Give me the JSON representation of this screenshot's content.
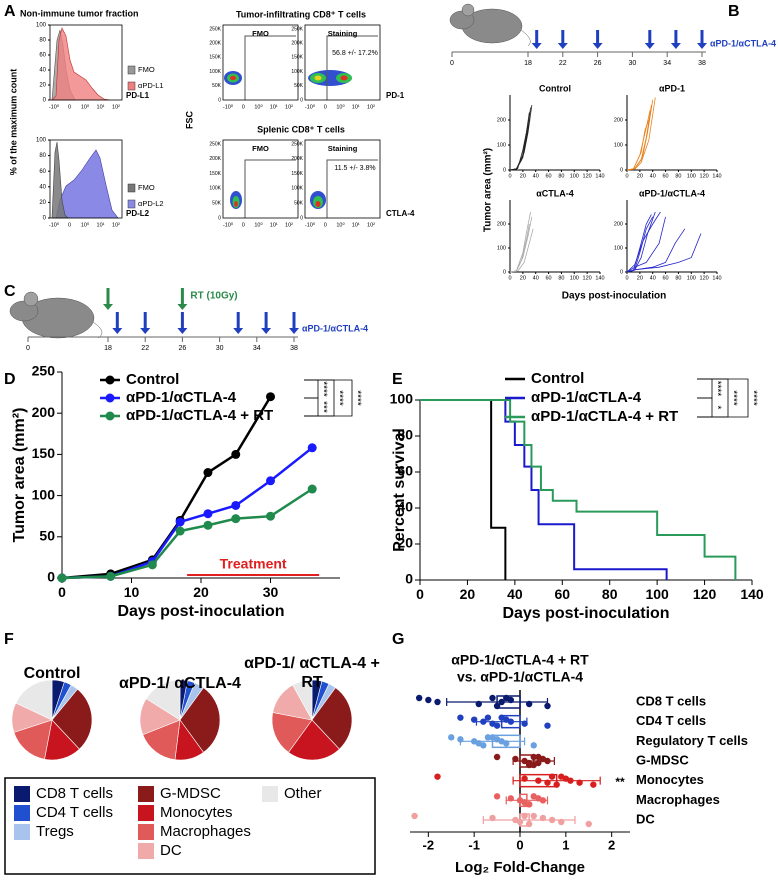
{
  "panel_labels": [
    "A",
    "B",
    "C",
    "D",
    "E",
    "F",
    "G"
  ],
  "histograms": {
    "title": "Non-immune tumor fraction",
    "ylabel": "% of the maximum count",
    "ylim": [
      0,
      100
    ],
    "yticks": [
      0,
      20,
      40,
      60,
      80,
      100
    ],
    "xticks": [
      "-10⁰",
      "0",
      "10⁰",
      "10¹",
      "10²"
    ],
    "panels": [
      {
        "xlabel": "PD-L1",
        "legend": [
          "FMO",
          "αPD-L1"
        ]
      },
      {
        "xlabel": "PD-L2",
        "legend": [
          "FMO",
          "αPD-L2"
        ]
      }
    ]
  },
  "dotplots": {
    "titles": [
      "Tumor-infiltrating CD8⁺ T cells",
      "Splenic CD8⁺ T cells"
    ],
    "ylabel": "FSC",
    "yticks": [
      "0",
      "50K",
      "100K",
      "150K",
      "200K",
      "250K"
    ],
    "xticks": [
      "-10⁰",
      "0",
      "10⁰",
      "10¹",
      "10²"
    ],
    "gates": [
      "FMO",
      "Staining"
    ],
    "stats": [
      "56.8 +/- 17.2%",
      "11.5 +/- 3.8%"
    ],
    "xlabels": [
      "PD-1",
      "CTLA-4"
    ]
  },
  "schedules": [
    {
      "ticks": [
        0,
        18,
        22,
        26,
        30,
        34,
        38
      ],
      "doses": [
        19,
        22,
        26,
        32,
        35,
        38
      ],
      "treatment": "αPD-1/αCTLA-4"
    },
    {
      "ticks": [
        0,
        18,
        22,
        26,
        30,
        34,
        38
      ],
      "doses": [
        19,
        22,
        26,
        32,
        35,
        38
      ],
      "rt_days": [
        18,
        26
      ],
      "rt_label": "RT (10Gy)",
      "treatment": "αPD-1/αCTLA-4"
    }
  ],
  "chart_data": [
    {
      "type": "line",
      "title": "Control",
      "ylabel": "Tumor area (mm²)",
      "xlabel": "Days post-inoculation",
      "color": "#222222",
      "xlim": [
        0,
        140
      ],
      "xticks": [
        0,
        20,
        40,
        60,
        80,
        100,
        120,
        140
      ],
      "ylim": [
        0,
        300
      ],
      "yticks": [
        0,
        100,
        200
      ],
      "series": [
        {
          "x": [
            0,
            10,
            20,
            25,
            30
          ],
          "values": [
            0,
            5,
            60,
            140,
            230
          ]
        },
        {
          "x": [
            0,
            10,
            20,
            26,
            32
          ],
          "values": [
            0,
            3,
            50,
            130,
            250
          ]
        },
        {
          "x": [
            0,
            10,
            22,
            28,
            34
          ],
          "values": [
            0,
            4,
            70,
            150,
            260
          ]
        },
        {
          "x": [
            0,
            12,
            20,
            27,
            31
          ],
          "values": [
            0,
            6,
            80,
            170,
            200
          ]
        },
        {
          "x": [
            0,
            10,
            18,
            24,
            29
          ],
          "values": [
            0,
            5,
            40,
            110,
            180
          ]
        }
      ]
    },
    {
      "type": "line",
      "title": "αPD-1",
      "color": "#e8821e",
      "xlim": [
        0,
        140
      ],
      "xticks": [
        0,
        20,
        40,
        60,
        80,
        100,
        120,
        140
      ],
      "ylim": [
        0,
        300
      ],
      "yticks": [
        0,
        100,
        200
      ],
      "series": [
        {
          "x": [
            0,
            12,
            22,
            30,
            38
          ],
          "values": [
            0,
            5,
            40,
            130,
            260
          ]
        },
        {
          "x": [
            0,
            12,
            24,
            32,
            40
          ],
          "values": [
            0,
            6,
            50,
            150,
            280
          ]
        },
        {
          "x": [
            0,
            10,
            20,
            30,
            36
          ],
          "values": [
            0,
            4,
            60,
            170,
            240
          ]
        },
        {
          "x": [
            0,
            12,
            22,
            34,
            44
          ],
          "values": [
            0,
            3,
            30,
            120,
            290
          ]
        },
        {
          "x": [
            0,
            10,
            22,
            28,
            34
          ],
          "values": [
            0,
            5,
            70,
            160,
            200
          ]
        }
      ]
    },
    {
      "type": "line",
      "title": "αCTLA-4",
      "color": "#aaaaaa",
      "xlim": [
        0,
        140
      ],
      "xticks": [
        0,
        20,
        40,
        60,
        80,
        100,
        120,
        140
      ],
      "ylim": [
        0,
        300
      ],
      "yticks": [
        0,
        100,
        200
      ],
      "series": [
        {
          "x": [
            0,
            10,
            20,
            28,
            34
          ],
          "values": [
            0,
            4,
            60,
            150,
            230
          ]
        },
        {
          "x": [
            0,
            10,
            20,
            26,
            32
          ],
          "values": [
            0,
            5,
            80,
            170,
            250
          ]
        },
        {
          "x": [
            0,
            12,
            22,
            30,
            36
          ],
          "values": [
            0,
            3,
            40,
            120,
            180
          ]
        },
        {
          "x": [
            0,
            10,
            18,
            26,
            30
          ],
          "values": [
            0,
            4,
            50,
            140,
            200
          ]
        }
      ]
    },
    {
      "type": "line",
      "title": "αPD-1/αCTLA-4",
      "color": "#2222cc",
      "xlim": [
        0,
        140
      ],
      "xticks": [
        0,
        20,
        40,
        60,
        80,
        100,
        120,
        140
      ],
      "ylim": [
        0,
        300
      ],
      "yticks": [
        0,
        100,
        200
      ],
      "series": [
        {
          "x": [
            0,
            12,
            20,
            30,
            40
          ],
          "values": [
            0,
            10,
            80,
            180,
            230
          ]
        },
        {
          "x": [
            0,
            12,
            22,
            32,
            44
          ],
          "values": [
            0,
            8,
            60,
            160,
            250
          ]
        },
        {
          "x": [
            0,
            10,
            20,
            30,
            38
          ],
          "values": [
            0,
            6,
            100,
            200,
            240
          ]
        },
        {
          "x": [
            0,
            12,
            30,
            50,
            60
          ],
          "values": [
            0,
            20,
            40,
            120,
            230
          ]
        },
        {
          "x": [
            0,
            14,
            40,
            60,
            75,
            90
          ],
          "values": [
            0,
            10,
            20,
            40,
            120,
            180
          ]
        },
        {
          "x": [
            0,
            14,
            50,
            80,
            100,
            115
          ],
          "values": [
            0,
            10,
            20,
            40,
            60,
            160
          ]
        },
        {
          "x": [
            0,
            12,
            25,
            40,
            52
          ],
          "values": [
            0,
            30,
            130,
            200,
            250
          ]
        }
      ]
    },
    {
      "type": "line",
      "markers": true,
      "ylabel": "Tumor area (mm²)",
      "xlabel": "Days post-inoculation",
      "xlim": [
        0,
        40
      ],
      "xticks": [
        0,
        10,
        20,
        30
      ],
      "ylim": [
        0,
        250
      ],
      "yticks": [
        0,
        50,
        100,
        150,
        200,
        250
      ],
      "series": [
        {
          "name": "Control",
          "color": "#000000",
          "x": [
            0,
            7,
            13,
            17,
            21,
            25,
            30
          ],
          "values": [
            0,
            5,
            22,
            70,
            128,
            150,
            220
          ]
        },
        {
          "name": "αPD-1/αCTLA-4",
          "color": "#1a1aff",
          "x": [
            0,
            7,
            13,
            17,
            21,
            25,
            30,
            36
          ],
          "values": [
            0,
            2,
            20,
            68,
            78,
            88,
            118,
            158
          ]
        },
        {
          "name": "αPD-1/αCTLA-4 + RT",
          "color": "#1f8a4c",
          "x": [
            0,
            7,
            13,
            17,
            21,
            25,
            30,
            36
          ],
          "values": [
            0,
            2,
            16,
            57,
            64,
            72,
            75,
            108
          ]
        }
      ],
      "significance": [
        "****",
        "****",
        "***",
        "****"
      ],
      "annotation": {
        "text": "Treatment",
        "span": [
          18,
          37
        ]
      }
    },
    {
      "type": "step",
      "ylabel": "Percent survival",
      "xlabel": "Days post-inoculation",
      "xlim": [
        0,
        140
      ],
      "xticks": [
        0,
        20,
        40,
        60,
        80,
        100,
        120,
        140
      ],
      "ylim": [
        0,
        100
      ],
      "yticks": [
        0,
        20,
        40,
        60,
        80,
        100
      ],
      "series": [
        {
          "name": "Control",
          "color": "#000000",
          "x": [
            0,
            30,
            36
          ],
          "values": [
            100,
            29,
            0
          ]
        },
        {
          "name": "αPD-1/αCTLA-4",
          "color": "#1a1acc",
          "x": [
            0,
            36,
            40,
            44,
            47,
            50,
            65,
            104
          ],
          "values": [
            100,
            88,
            75,
            63,
            50,
            31,
            6,
            0
          ]
        },
        {
          "name": "αPD-1/αCTLA-4 + RT",
          "color": "#2a9a5a",
          "x": [
            0,
            38,
            44,
            47,
            51,
            56,
            66,
            100,
            120,
            133
          ],
          "values": [
            100,
            88,
            75,
            63,
            50,
            44,
            38,
            25,
            13,
            0
          ]
        }
      ],
      "significance": [
        "****",
        "****",
        "*",
        "****"
      ]
    },
    {
      "type": "pie",
      "categories": [
        "CD8 T cells",
        "CD4 T cells",
        "Tregs",
        "G-MDSC",
        "Monocytes",
        "Macrophages",
        "DC",
        "Other"
      ],
      "colors": [
        "#0a1a6e",
        "#2050d0",
        "#a8c4ec",
        "#8b1a1a",
        "#c8141e",
        "#e05a5a",
        "#f0aaaa",
        "#e8e8e8"
      ],
      "series": [
        {
          "name": "Control",
          "values": [
            5,
            3,
            3,
            27,
            15,
            17,
            12,
            18
          ]
        },
        {
          "name": "αPD-1/ αCTLA-4",
          "values": [
            3,
            3,
            4,
            30,
            12,
            17,
            15,
            16
          ]
        },
        {
          "name": "αPD-1/ αCTLA-4 + RT",
          "values": [
            4,
            3,
            3,
            28,
            22,
            18,
            14,
            8
          ]
        }
      ]
    },
    {
      "type": "dot_bar",
      "title": "αPD-1/αCTLA-4 + RT",
      "subtitle": "vs. αPD-1/αCTLA-4",
      "xlabel": "Log₂ Fold-Change",
      "xlim": [
        -2.4,
        2.4
      ],
      "xticks": [
        -2,
        -1,
        0,
        1,
        2
      ],
      "categories": [
        "CD8 T cells",
        "CD4 T cells",
        "Regulatory T cells",
        "G-MDSC",
        "Monocytes",
        "Macrophages",
        "DC"
      ],
      "colors": [
        "#0a1a6e",
        "#2040c0",
        "#6aa0e0",
        "#8b1a1a",
        "#d81e1e",
        "#e86060",
        "#f0a0a0"
      ],
      "values": [
        -0.5,
        -0.4,
        -0.6,
        0.3,
        0.8,
        0.15,
        0.2
      ],
      "errors": [
        1.1,
        0.55,
        0.7,
        0.45,
        0.95,
        0.45,
        1.0
      ],
      "points": [
        [
          -2.2,
          -2.0,
          -1.8,
          -0.9,
          -0.5,
          -0.3,
          -0.2,
          -0.4,
          0.2,
          0.6,
          -0.6
        ],
        [
          -1.3,
          -1.0,
          -0.8,
          -0.6,
          -0.5,
          -0.4,
          -0.3,
          -0.2,
          0.1,
          0.6,
          -0.7
        ],
        [
          -1.5,
          -1.3,
          -1.0,
          -0.9,
          -0.8,
          -0.7,
          -0.5,
          -0.4,
          -0.3,
          0.3,
          -0.6
        ],
        [
          -0.5,
          -0.1,
          0.1,
          0.2,
          0.3,
          0.4,
          0.5,
          0.6,
          0.4,
          0.2,
          0.3
        ],
        [
          -1.8,
          0.1,
          0.4,
          0.6,
          0.8,
          0.9,
          1.0,
          1.1,
          1.3,
          1.6,
          0.7
        ],
        [
          -0.5,
          -0.2,
          0.0,
          0.1,
          0.2,
          0.3,
          0.4,
          0.5,
          0.1,
          0.2
        ],
        [
          -2.3,
          -0.6,
          -0.1,
          0.0,
          0.2,
          0.3,
          0.5,
          0.7,
          0.9,
          1.5,
          0.1
        ]
      ],
      "annotation": {
        "text": "**",
        "category": 4
      }
    }
  ]
}
